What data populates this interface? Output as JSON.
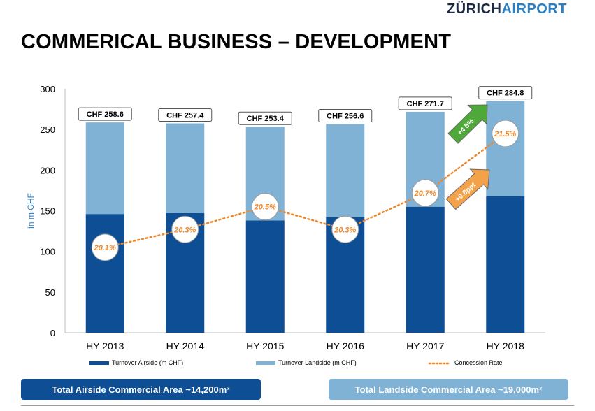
{
  "header": {
    "logo_part1": "ZÜRICH",
    "logo_part2": "AIRPORT",
    "title": "COMMERICAL BUSINESS – DEVELOPMENT"
  },
  "colors": {
    "airside": "#0d4e95",
    "landside": "#80b2d5",
    "concession": "#f0882a",
    "arrow_green": "#4fa83a",
    "arrow_orange": "#f4a24a"
  },
  "chart_data": {
    "type": "bar",
    "stacked": true,
    "categories": [
      "HY 2013",
      "HY 2014",
      "HY 2015",
      "HY 2016",
      "HY 2017",
      "HY 2018"
    ],
    "ylabel": "in m CHF",
    "ylim": [
      0,
      300
    ],
    "yticks": [
      0,
      50,
      100,
      150,
      200,
      250,
      300
    ],
    "series": [
      {
        "name": "Turnover Airside (m CHF)",
        "values": [
          146,
          147,
          138,
          142,
          155,
          168
        ]
      },
      {
        "name": "Turnover Landside (m CHF)",
        "values": [
          112.6,
          110.4,
          115.4,
          114.6,
          116.7,
          116.8
        ]
      }
    ],
    "totals_labels": [
      "CHF 258.6",
      "CHF 257.4",
      "CHF 253.4",
      "CHF 256.6",
      "CHF 271.7",
      "CHF 284.8"
    ],
    "line_series": {
      "name": "Concession Rate",
      "labels": [
        "20.1%",
        "20.3%",
        "20.5%",
        "20.3%",
        "20.7%",
        "21.5%"
      ],
      "plot_values": [
        105,
        127,
        155,
        127,
        172,
        245
      ]
    },
    "annotations": [
      {
        "text": "+4.5%",
        "color": "green"
      },
      {
        "text": "+0.8ppt",
        "color": "orange"
      }
    ],
    "legend_position": "bottom"
  },
  "footer": {
    "airside_area": "Total Airside Commercial Area ~14,200m²",
    "landside_area": "Total Landside Commercial Area ~19,000m²"
  }
}
